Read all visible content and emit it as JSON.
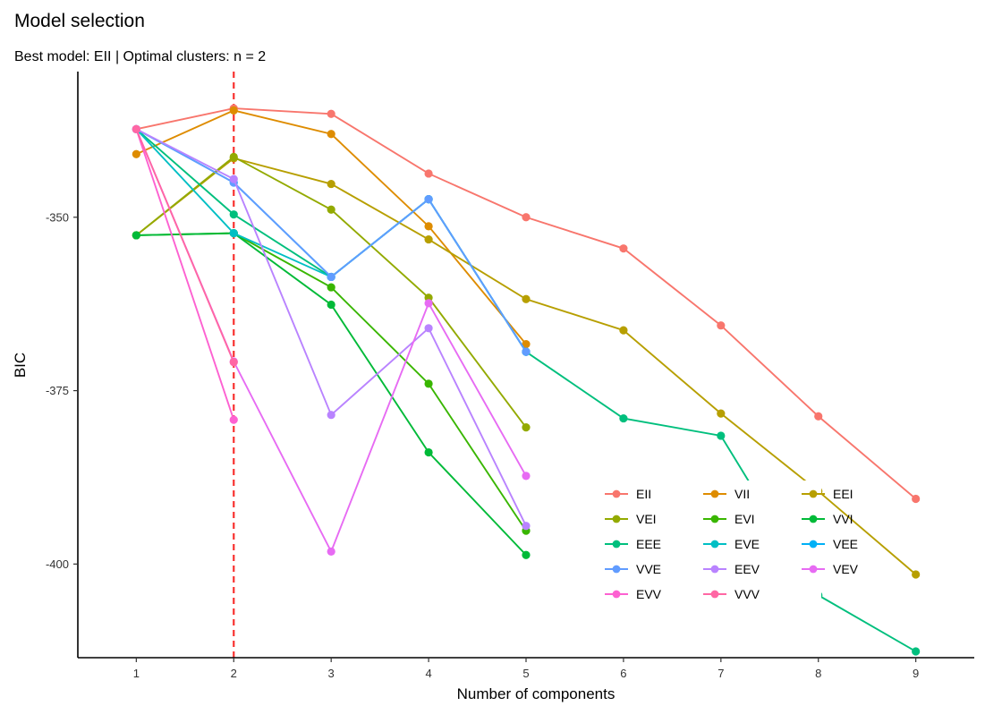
{
  "chart_data": {
    "type": "line",
    "title": "Model selection",
    "subtitle": "Best model: EII | Optimal clusters: n = 2",
    "xlabel": "Number of components",
    "ylabel": "BIC",
    "x_ticks": [
      "1",
      "2",
      "3",
      "4",
      "5",
      "6",
      "7",
      "8",
      "9"
    ],
    "y_ticks": [
      -350,
      -375,
      -400
    ],
    "xlim": [
      0.4,
      9.6
    ],
    "ylim": [
      -413.5,
      -329
    ],
    "reference_line": {
      "x": 2,
      "style": "dashed",
      "color": "#f8312f"
    },
    "legend_position": "bottom-right",
    "legend_columns": 3,
    "series": [
      {
        "name": "EII",
        "color": "#f8766d",
        "x": [
          1,
          2,
          3,
          4,
          5,
          6,
          7,
          8,
          9
        ],
        "y": [
          -337.3,
          -334.3,
          -335.1,
          -343.7,
          -350.0,
          -354.5,
          -365.6,
          -378.7,
          -390.6
        ]
      },
      {
        "name": "VII",
        "color": "#de8c00",
        "x": [
          1,
          2,
          3,
          4,
          5
        ],
        "y": [
          -340.9,
          -334.6,
          -338.0,
          -351.3,
          -368.3
        ]
      },
      {
        "name": "EEI",
        "color": "#b79f00",
        "x": [
          1,
          2,
          3,
          4,
          5,
          6,
          7,
          8,
          9
        ],
        "y": [
          -352.6,
          -341.5,
          -345.2,
          -353.2,
          -361.8,
          -366.3,
          -378.3,
          -389.5,
          -401.5
        ]
      },
      {
        "name": "VEI",
        "color": "#93aa00",
        "x": [
          1,
          2,
          3,
          4,
          5
        ],
        "y": [
          -352.6,
          -341.3,
          -348.9,
          -361.6,
          -380.3
        ]
      },
      {
        "name": "EVI",
        "color": "#39b600",
        "x": [
          1,
          2,
          3,
          4,
          5
        ],
        "y": [
          -352.6,
          -352.3,
          -360.1,
          -374.0,
          -395.2
        ]
      },
      {
        "name": "VVI",
        "color": "#00ba38",
        "x": [
          1,
          2,
          3,
          4,
          5
        ],
        "y": [
          -352.6,
          -352.3,
          -362.6,
          -383.9,
          -398.7
        ]
      },
      {
        "name": "EEE",
        "color": "#00bf7d",
        "x": [
          1,
          2,
          3,
          4,
          5,
          6,
          7,
          8,
          9
        ],
        "y": [
          -337.3,
          -349.6,
          -358.6,
          -347.4,
          -369.4,
          -379.0,
          -381.5,
          -404.5,
          -412.6
        ]
      },
      {
        "name": "EVE",
        "color": "#00bfc4",
        "x": [
          1,
          2,
          3,
          4,
          5
        ],
        "y": [
          -337.3,
          -352.3,
          -358.6,
          -347.4,
          -369.4
        ]
      },
      {
        "name": "VEE",
        "color": "#00b0f6",
        "x": [
          1,
          2,
          3,
          4,
          5
        ],
        "y": [
          -337.3,
          -345.0,
          -358.6,
          -347.4,
          -369.4
        ]
      },
      {
        "name": "VVE",
        "color": "#619cff",
        "x": [
          1,
          2,
          3,
          4,
          5
        ],
        "y": [
          -337.3,
          -345.0,
          -358.6,
          -347.4,
          -369.4
        ]
      },
      {
        "name": "EEV",
        "color": "#b983ff",
        "x": [
          1,
          2,
          3,
          4,
          5
        ],
        "y": [
          -337.3,
          -344.5,
          -378.5,
          -366.0,
          -394.5
        ]
      },
      {
        "name": "VEV",
        "color": "#e76bf3",
        "x": [
          1,
          2,
          3,
          4,
          5
        ],
        "y": [
          -337.3,
          -370.8,
          -398.2,
          -362.4,
          -387.3
        ]
      },
      {
        "name": "EVV",
        "color": "#fd61d1",
        "x": [
          1,
          2
        ],
        "y": [
          -337.3,
          -379.2
        ]
      },
      {
        "name": "VVV",
        "color": "#ff67a4",
        "x": [
          1,
          2
        ],
        "y": [
          -337.3,
          -370.9
        ]
      }
    ]
  }
}
